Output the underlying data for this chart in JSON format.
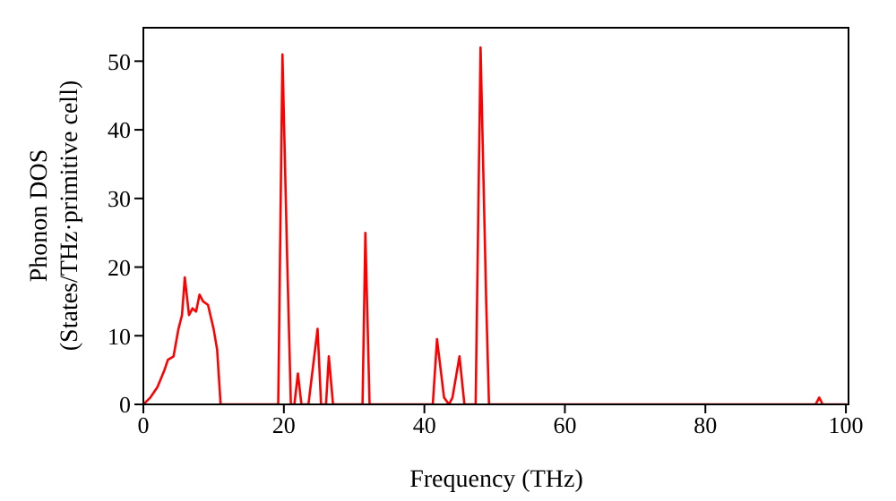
{
  "chart_data": {
    "type": "line",
    "xlabel": "Frequency (THz)",
    "ylabel": "Phonon DOS\n(States/THz·primitive cell)",
    "x": [
      0,
      1,
      2,
      3,
      3.5,
      4.3,
      5,
      5.5,
      5.9,
      6.5,
      7,
      7.5,
      8,
      8.5,
      9.2,
      10,
      10.5,
      11,
      19.2,
      19.8,
      20.5,
      21,
      21.5,
      22,
      22.5,
      23.5,
      24.8,
      25.3,
      26,
      26.4,
      27,
      31.2,
      31.6,
      32.2,
      41.2,
      41.8,
      42.8,
      43.5,
      44,
      45,
      45.7,
      47.3,
      48,
      48.8,
      49.2,
      95.7,
      96.2,
      96.7,
      100
    ],
    "series": [
      {
        "color": "#ff0000",
        "values": [
          0,
          1,
          2.5,
          5,
          6.5,
          7,
          11,
          13,
          18.5,
          13,
          14,
          13.5,
          16,
          15,
          14.5,
          11,
          8,
          0,
          0,
          51,
          20,
          0,
          0,
          4.5,
          0,
          0,
          11,
          0,
          0,
          7,
          0,
          0,
          25,
          0,
          0,
          9.5,
          1,
          0,
          1,
          7,
          0,
          0,
          52,
          15,
          0,
          0,
          1,
          0,
          0
        ]
      }
    ],
    "xlim": [
      0,
      100.5
    ],
    "xticks": [
      0,
      20,
      40,
      60,
      80,
      100
    ],
    "ylim": [
      0,
      55
    ],
    "yticks": [
      0,
      10,
      20,
      30,
      40,
      50
    ],
    "marker": "none",
    "line_style": "solid"
  }
}
